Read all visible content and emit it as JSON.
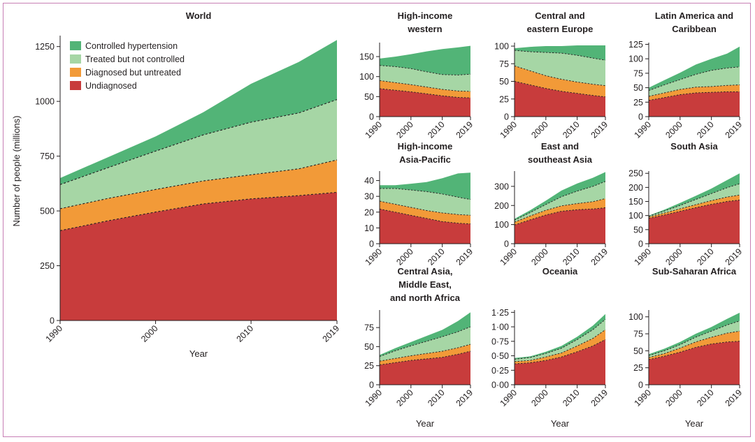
{
  "figure": {
    "y_label": "Number of people (millions)",
    "x_label": "Year",
    "legend": [
      {
        "label": "Controlled hypertension",
        "color": "#52b477"
      },
      {
        "label": "Treated but not controlled",
        "color": "#a6d6a5"
      },
      {
        "label": "Diagnosed but untreated",
        "color": "#f29a38"
      },
      {
        "label": "Undiagnosed",
        "color": "#c83c3c"
      }
    ],
    "boundary_style": "dashed"
  },
  "chart_data": [
    {
      "type": "area",
      "title": [
        "World"
      ],
      "x": [
        1990,
        1995,
        2000,
        2005,
        2010,
        2015,
        2019
      ],
      "xticks": [
        1990,
        2000,
        2010,
        2019
      ],
      "xlabel": "Year",
      "ylabel": "Number of people (millions)",
      "ylim": [
        0,
        1300
      ],
      "yticks": [
        0,
        250,
        500,
        750,
        1000,
        1250
      ],
      "yticklabels": [
        "0",
        "250",
        "500",
        "750",
        "1000",
        "1250"
      ],
      "series": [
        {
          "name": "Undiagnosed",
          "values": [
            410,
            455,
            495,
            532,
            555,
            570,
            585
          ]
        },
        {
          "name": "Diagnosed but untreated",
          "values": [
            100,
            102,
            103,
            105,
            110,
            122,
            148
          ]
        },
        {
          "name": "Treated but not controlled",
          "values": [
            110,
            140,
            175,
            210,
            240,
            255,
            275
          ]
        },
        {
          "name": "Controlled hypertension",
          "values": [
            30,
            48,
            67,
            103,
            175,
            233,
            272
          ]
        }
      ]
    },
    {
      "type": "area",
      "title": [
        "High-income",
        "western"
      ],
      "x": [
        1990,
        1995,
        2000,
        2005,
        2010,
        2015,
        2019
      ],
      "xticks": [
        1990,
        2000,
        2010,
        2019
      ],
      "xlabel": "",
      "ylim": [
        0,
        185
      ],
      "yticks": [
        0,
        50,
        100,
        150
      ],
      "yticklabels": [
        "0",
        "50",
        "100",
        "150"
      ],
      "series": [
        {
          "name": "Undiagnosed",
          "values": [
            70,
            66,
            62,
            57,
            52,
            48,
            47
          ]
        },
        {
          "name": "Diagnosed but untreated",
          "values": [
            20,
            19,
            18,
            17,
            16,
            16,
            16
          ]
        },
        {
          "name": "Treated but not controlled",
          "values": [
            38,
            40,
            40,
            38,
            37,
            40,
            43
          ]
        },
        {
          "name": "Controlled hypertension",
          "values": [
            17,
            25,
            36,
            51,
            64,
            69,
            71
          ]
        }
      ]
    },
    {
      "type": "area",
      "title": [
        "Central and",
        "eastern Europe"
      ],
      "x": [
        1990,
        1995,
        2000,
        2005,
        2010,
        2015,
        2019
      ],
      "xticks": [
        1990,
        2000,
        2010,
        2019
      ],
      "xlabel": "",
      "ylim": [
        0,
        105
      ],
      "yticks": [
        0,
        25,
        50,
        75,
        100
      ],
      "yticklabels": [
        "0",
        "25",
        "50",
        "75",
        "100"
      ],
      "series": [
        {
          "name": "Undiagnosed",
          "values": [
            50,
            45,
            40,
            36,
            33,
            30,
            28
          ]
        },
        {
          "name": "Diagnosed but untreated",
          "values": [
            22,
            20,
            18,
            17,
            16,
            16,
            16
          ]
        },
        {
          "name": "Treated but not controlled",
          "values": [
            22,
            27,
            33,
            37,
            38,
            37,
            36
          ]
        },
        {
          "name": "Controlled hypertension",
          "values": [
            3,
            7,
            9,
            10,
            14,
            18,
            21
          ]
        }
      ]
    },
    {
      "type": "area",
      "title": [
        "Latin America and",
        "Caribbean"
      ],
      "x": [
        1990,
        1995,
        2000,
        2005,
        2010,
        2015,
        2019
      ],
      "xticks": [
        1990,
        2000,
        2010,
        2019
      ],
      "xlabel": "",
      "ylim": [
        0,
        128
      ],
      "yticks": [
        0,
        25,
        50,
        75,
        100,
        125
      ],
      "yticklabels": [
        "0",
        "25",
        "50",
        "75",
        "100",
        "125"
      ],
      "series": [
        {
          "name": "Undiagnosed",
          "values": [
            28,
            33,
            38,
            41,
            42,
            43,
            43
          ]
        },
        {
          "name": "Diagnosed but untreated",
          "values": [
            7,
            8,
            9,
            10,
            10,
            11,
            12
          ]
        },
        {
          "name": "Treated but not controlled",
          "values": [
            10,
            14,
            17,
            22,
            28,
            30,
            31
          ]
        },
        {
          "name": "Controlled hypertension",
          "values": [
            5,
            8,
            12,
            17,
            20,
            25,
            35
          ]
        }
      ]
    },
    {
      "type": "area",
      "title": [
        "High-income",
        "Asia-Pacific"
      ],
      "x": [
        1990,
        1995,
        2000,
        2005,
        2010,
        2015,
        2019
      ],
      "xticks": [
        1990,
        2000,
        2010,
        2019
      ],
      "xlabel": "",
      "ylim": [
        0,
        46
      ],
      "yticks": [
        0,
        10,
        20,
        30,
        40
      ],
      "yticklabels": [
        "0",
        "10",
        "20",
        "30",
        "40"
      ],
      "series": [
        {
          "name": "Undiagnosed",
          "values": [
            22,
            20,
            18,
            16,
            14,
            13,
            12.5
          ]
        },
        {
          "name": "Diagnosed but untreated",
          "values": [
            5,
            5,
            5,
            5,
            5.5,
            5.5,
            5.5
          ]
        },
        {
          "name": "Treated but not controlled",
          "values": [
            8,
            10,
            11,
            12,
            12,
            11,
            10
          ]
        },
        {
          "name": "Controlled hypertension",
          "values": [
            2,
            2,
            4,
            6,
            10,
            15,
            17
          ]
        }
      ]
    },
    {
      "type": "area",
      "title": [
        "East and",
        "southeast Asia"
      ],
      "x": [
        1990,
        1995,
        2000,
        2005,
        2010,
        2015,
        2019
      ],
      "xticks": [
        1990,
        2000,
        2010,
        2019
      ],
      "xlabel": "",
      "ylim": [
        0,
        380
      ],
      "yticks": [
        0,
        100,
        200,
        300
      ],
      "yticklabels": [
        "0",
        "100",
        "200",
        "300"
      ],
      "series": [
        {
          "name": "Undiagnosed",
          "values": [
            98,
            125,
            150,
            170,
            178,
            182,
            188
          ]
        },
        {
          "name": "Diagnosed but untreated",
          "values": [
            15,
            20,
            25,
            28,
            32,
            38,
            48
          ]
        },
        {
          "name": "Treated but not controlled",
          "values": [
            10,
            18,
            30,
            48,
            65,
            80,
            90
          ]
        },
        {
          "name": "Controlled hypertension",
          "values": [
            7,
            12,
            20,
            32,
            40,
            45,
            49
          ]
        }
      ]
    },
    {
      "type": "area",
      "title": [
        "South Asia"
      ],
      "x": [
        1990,
        1995,
        2000,
        2005,
        2010,
        2015,
        2019
      ],
      "xticks": [
        1990,
        2000,
        2010,
        2019
      ],
      "xlabel": "",
      "ylim": [
        0,
        258
      ],
      "yticks": [
        0,
        50,
        100,
        150,
        200,
        250
      ],
      "yticklabels": [
        "0",
        "50",
        "100",
        "150",
        "200",
        "250"
      ],
      "series": [
        {
          "name": "Undiagnosed",
          "values": [
            90,
            102,
            115,
            128,
            140,
            150,
            155
          ]
        },
        {
          "name": "Diagnosed but untreated",
          "values": [
            5,
            7,
            9,
            11,
            13,
            16,
            18
          ]
        },
        {
          "name": "Treated but not controlled",
          "values": [
            3,
            7,
            12,
            18,
            25,
            33,
            40
          ]
        },
        {
          "name": "Controlled hypertension",
          "values": [
            2,
            5,
            9,
            13,
            18,
            27,
            37
          ]
        }
      ]
    },
    {
      "type": "area",
      "title": [
        "Central Asia,",
        "Middle East,",
        "and north Africa"
      ],
      "x": [
        1990,
        1995,
        2000,
        2005,
        2010,
        2015,
        2019
      ],
      "xticks": [
        1990,
        2000,
        2010,
        2019
      ],
      "xlabel": "Year",
      "ylim": [
        0,
        98
      ],
      "yticks": [
        0,
        25,
        50,
        75
      ],
      "yticklabels": [
        "0",
        "25",
        "50",
        "75"
      ],
      "series": [
        {
          "name": "Undiagnosed",
          "values": [
            26,
            29,
            32,
            34,
            36,
            40,
            44
          ]
        },
        {
          "name": "Diagnosed but untreated",
          "values": [
            5,
            5.5,
            6,
            7,
            8,
            8.5,
            9
          ]
        },
        {
          "name": "Treated but not controlled",
          "values": [
            6,
            10,
            13,
            16,
            19,
            21,
            23
          ]
        },
        {
          "name": "Controlled hypertension",
          "values": [
            2,
            3.5,
            5,
            7,
            9,
            14,
            19
          ]
        }
      ]
    },
    {
      "type": "area",
      "title": [
        "Oceania"
      ],
      "x": [
        1990,
        1995,
        2000,
        2005,
        2010,
        2015,
        2019
      ],
      "xticks": [
        1990,
        2000,
        2010,
        2019
      ],
      "xlabel": "Year",
      "ylim": [
        0,
        1.29
      ],
      "yticks": [
        0,
        0.25,
        0.5,
        0.75,
        1.0,
        1.25
      ],
      "yticklabels": [
        "0·00",
        "0·25",
        "0·50",
        "0·75",
        "1·00",
        "1·25"
      ],
      "series": [
        {
          "name": "Undiagnosed",
          "values": [
            0.36,
            0.38,
            0.42,
            0.48,
            0.57,
            0.67,
            0.78
          ]
        },
        {
          "name": "Diagnosed but untreated",
          "values": [
            0.04,
            0.04,
            0.06,
            0.07,
            0.1,
            0.13,
            0.17
          ]
        },
        {
          "name": "Treated but not controlled",
          "values": [
            0.04,
            0.05,
            0.06,
            0.08,
            0.11,
            0.15,
            0.18
          ]
        },
        {
          "name": "Controlled hypertension",
          "values": [
            0.02,
            0.02,
            0.03,
            0.04,
            0.05,
            0.07,
            0.09
          ]
        }
      ]
    },
    {
      "type": "area",
      "title": [
        "Sub-Saharan Africa"
      ],
      "x": [
        1990,
        1995,
        2000,
        2005,
        2010,
        2015,
        2019
      ],
      "xticks": [
        1990,
        2000,
        2010,
        2019
      ],
      "xlabel": "Year",
      "ylim": [
        0,
        110
      ],
      "yticks": [
        0,
        25,
        50,
        75,
        100
      ],
      "yticklabels": [
        "0",
        "25",
        "50",
        "75",
        "100"
      ],
      "series": [
        {
          "name": "Undiagnosed",
          "values": [
            37,
            42,
            48,
            55,
            60,
            63,
            64
          ]
        },
        {
          "name": "Diagnosed but untreated",
          "values": [
            3,
            4,
            6,
            8,
            10,
            13,
            15
          ]
        },
        {
          "name": "Treated but not controlled",
          "values": [
            3,
            4,
            5,
            7,
            9,
            12,
            15
          ]
        },
        {
          "name": "Controlled hypertension",
          "values": [
            2,
            3,
            4,
            5,
            6,
            9,
            12
          ]
        }
      ]
    }
  ]
}
